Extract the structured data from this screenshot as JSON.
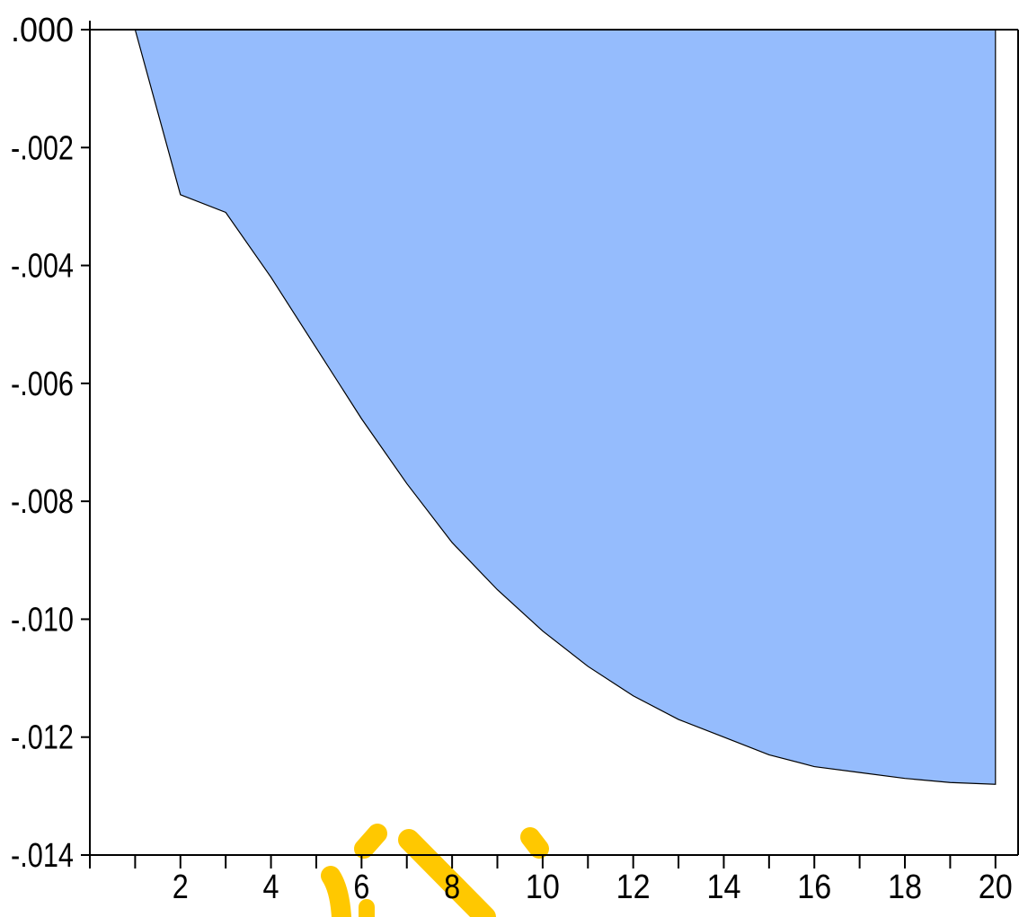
{
  "chart_data": {
    "type": "area",
    "title": "",
    "xlabel": "",
    "ylabel": "",
    "x": [
      1,
      2,
      3,
      4,
      5,
      6,
      7,
      8,
      9,
      10,
      11,
      12,
      13,
      14,
      15,
      16,
      17,
      18,
      19,
      20
    ],
    "series": [
      {
        "values": [
          0.0,
          -0.0028,
          -0.0031,
          -0.0042,
          -0.0054,
          -0.0066,
          -0.0077,
          -0.0087,
          -0.0095,
          -0.0102,
          -0.0108,
          -0.0113,
          -0.0117,
          -0.012,
          -0.0123,
          -0.0125,
          -0.0126,
          -0.0127,
          -0.01277,
          -0.0128
        ]
      }
    ],
    "xlim": [
      0,
      20.5
    ],
    "ylim": [
      -0.014,
      0.0
    ],
    "x_ticks": [
      2,
      4,
      6,
      8,
      10,
      12,
      14,
      16,
      18,
      20
    ],
    "x_tick_labels": [
      "2",
      "4",
      "6",
      "8",
      "10",
      "12",
      "14",
      "16",
      "18",
      "20"
    ],
    "y_ticks": [
      0.0,
      -0.002,
      -0.004,
      -0.006,
      -0.008,
      -0.01,
      -0.012,
      -0.014
    ],
    "y_tick_labels": [
      ".000",
      "-.002",
      "-.004",
      "-.006",
      "-.008",
      "-.010",
      "-.012",
      "-.014"
    ],
    "fill_color": "#95bcfd",
    "line_color": "#000000",
    "watermark_color": "#ffc800",
    "grid": false,
    "legend": "none"
  }
}
